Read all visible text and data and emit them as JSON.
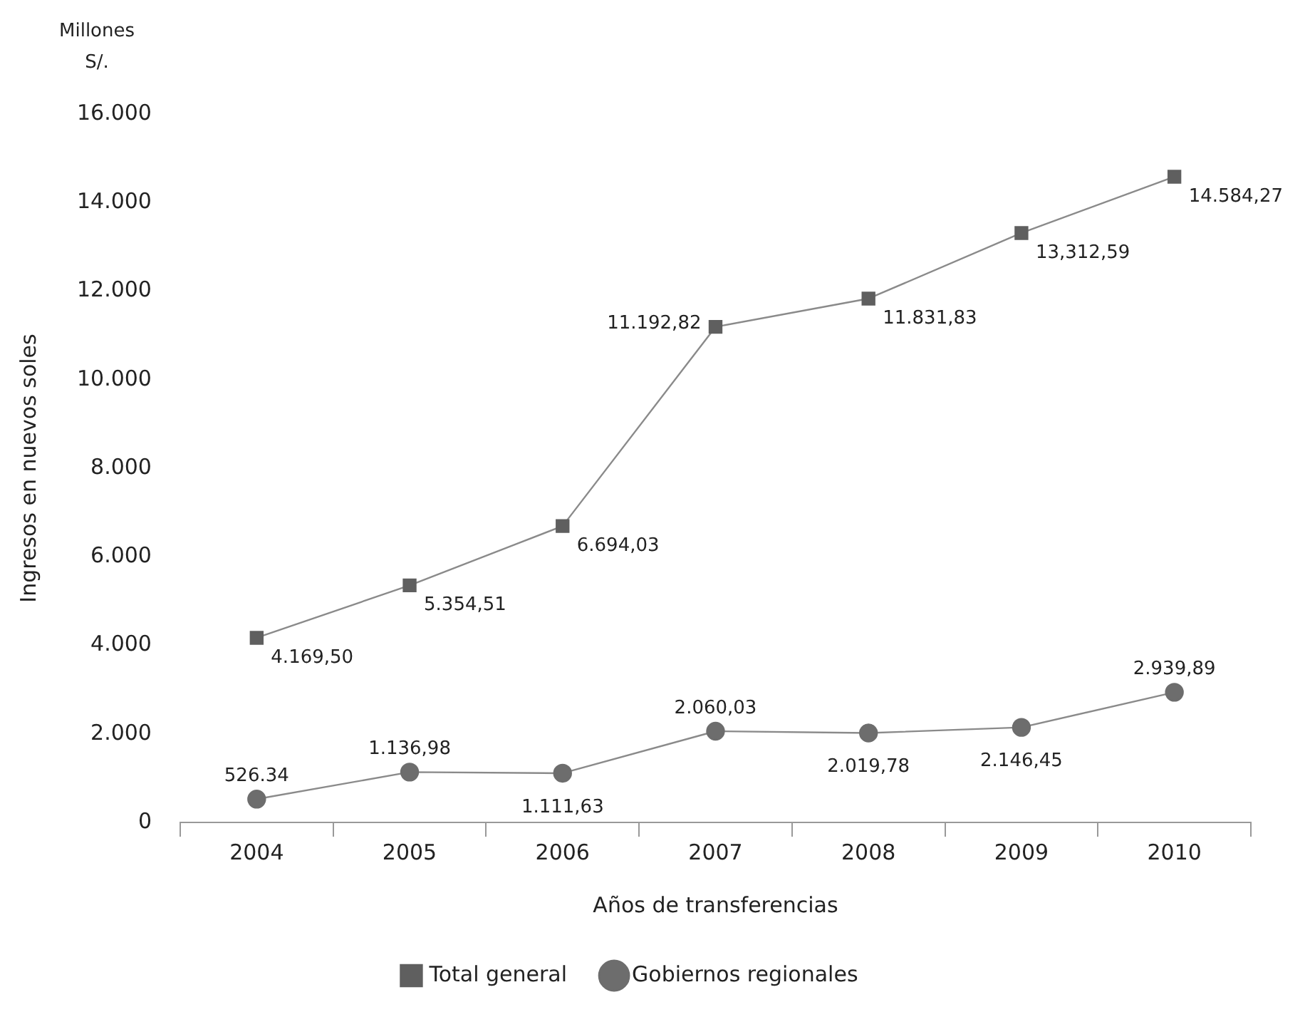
{
  "chart_data": {
    "type": "line",
    "xlabel": "Años de transferencias",
    "ylabel": "Ingresos en nuevos soles",
    "annotations": [
      "Millones",
      "S/."
    ],
    "categories": [
      "2004",
      "2005",
      "2006",
      "2007",
      "2008",
      "2009",
      "2010"
    ],
    "ylim": [
      0,
      16000
    ],
    "yticks": [
      {
        "value": 0,
        "label": "0"
      },
      {
        "value": 2000,
        "label": "2.000"
      },
      {
        "value": 4000,
        "label": "4.000"
      },
      {
        "value": 6000,
        "label": "6.000"
      },
      {
        "value": 8000,
        "label": "8.000"
      },
      {
        "value": 10000,
        "label": "10.000"
      },
      {
        "value": 12000,
        "label": "12.000"
      },
      {
        "value": 14000,
        "label": "14.000"
      },
      {
        "value": 16000,
        "label": "16.000"
      }
    ],
    "grid": false,
    "legend": "bottom",
    "line_style": "solid",
    "series": [
      {
        "name": "Total general",
        "color": "#5f5f5f",
        "marker": "square",
        "values": [
          4169.5,
          5354.51,
          6694.03,
          11192.82,
          11831.83,
          13312.59,
          14584.27
        ],
        "value_labels": [
          "4.169,50",
          "5.354,51",
          "6.694,03",
          "11.192,82",
          "11.831,83",
          "13,312,59",
          "14.584,27"
        ]
      },
      {
        "name": "Gobiernos regionales",
        "color": "#6d6d6d",
        "marker": "circle",
        "values": [
          526.34,
          1136.98,
          1111.63,
          2060.03,
          2019.78,
          2146.45,
          2939.89
        ],
        "value_labels": [
          "526.34",
          "1.136,98",
          "1.111,63",
          "2.060,03",
          "2.019,78",
          "2.146,45",
          "2.939,89"
        ]
      }
    ]
  }
}
